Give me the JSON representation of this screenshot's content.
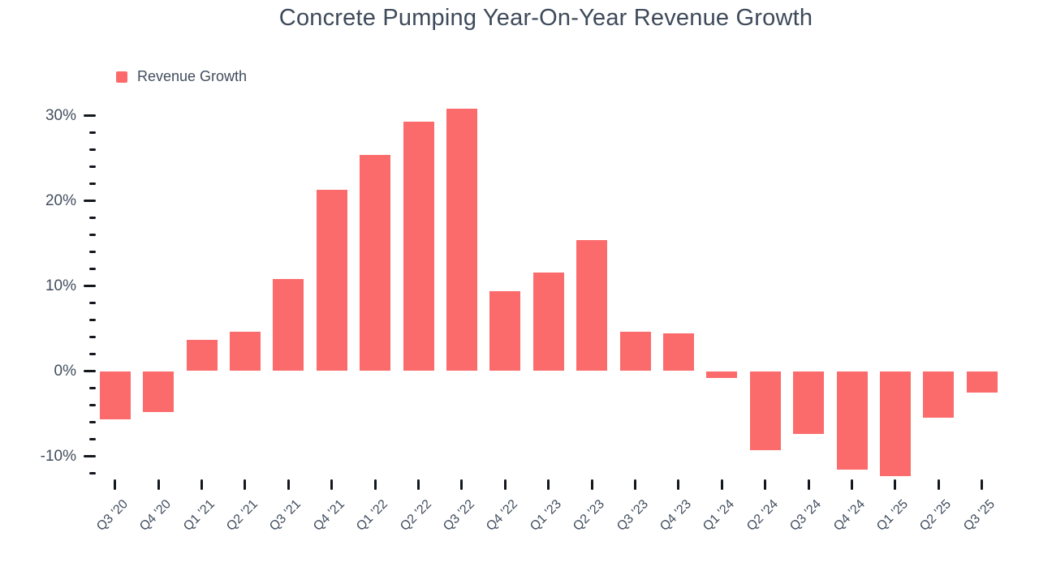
{
  "title": "Concrete Pumping Year-On-Year Revenue Growth",
  "legend": {
    "label": "Revenue Growth"
  },
  "colors": {
    "bar": "#FC6B6B",
    "text": "#414D5E",
    "title_text": "#3E4A5A",
    "tick": "#14181D",
    "background": "#FFFFFF"
  },
  "chart_data": {
    "type": "bar",
    "title": "Concrete Pumping Year-On-Year Revenue Growth",
    "categories": [
      "Q3 '20",
      "Q4 '20",
      "Q1 '21",
      "Q2 '21",
      "Q3 '21",
      "Q4 '21",
      "Q1 '22",
      "Q2 '22",
      "Q3 '22",
      "Q4 '22",
      "Q1 '23",
      "Q2 '23",
      "Q3 '23",
      "Q4 '23",
      "Q1 '24",
      "Q2 '24",
      "Q3 '24",
      "Q4 '24",
      "Q1 '25",
      "Q2 '25",
      "Q3 '25"
    ],
    "series": [
      {
        "name": "Revenue Growth",
        "values": [
          -5.7,
          -4.8,
          3.7,
          4.6,
          10.8,
          21.3,
          25.4,
          29.3,
          30.8,
          9.4,
          11.6,
          15.4,
          4.6,
          4.4,
          -0.8,
          -9.3,
          -7.4,
          -11.6,
          -12.3,
          -5.5,
          -2.5
        ]
      }
    ],
    "xlabel": "",
    "ylabel": "",
    "ylim": [
      -12,
      30
    ],
    "y_major_tick_step": 10,
    "y_minor_tick_step": 2,
    "y_tick_label_format": "{value}%",
    "y_major_tick_labels": [
      "-10%",
      "0%",
      "10%",
      "20%",
      "30%"
    ],
    "x_label_rotation": -45,
    "grid": false,
    "legend_position": "top-left"
  }
}
